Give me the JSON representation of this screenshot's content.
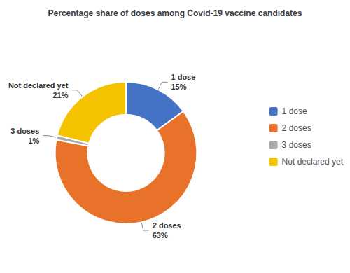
{
  "chart_data": {
    "type": "pie",
    "title": "Percentage share of doses among Covid-19 vaccine candidates",
    "categories": [
      "1 dose",
      "2 doses",
      "3 doses",
      "Not declared yet"
    ],
    "values": [
      15,
      63,
      1,
      21
    ],
    "value_labels": [
      "15%",
      "63%",
      "1%",
      "21%"
    ],
    "colors": [
      "#4472C4",
      "#E8722A",
      "#AAAAAA",
      "#F5C200"
    ],
    "legend_labels": [
      "1 dose",
      "2 doses",
      "3 doses",
      "Not declared yet"
    ],
    "legend": "right",
    "data_labels": true
  }
}
